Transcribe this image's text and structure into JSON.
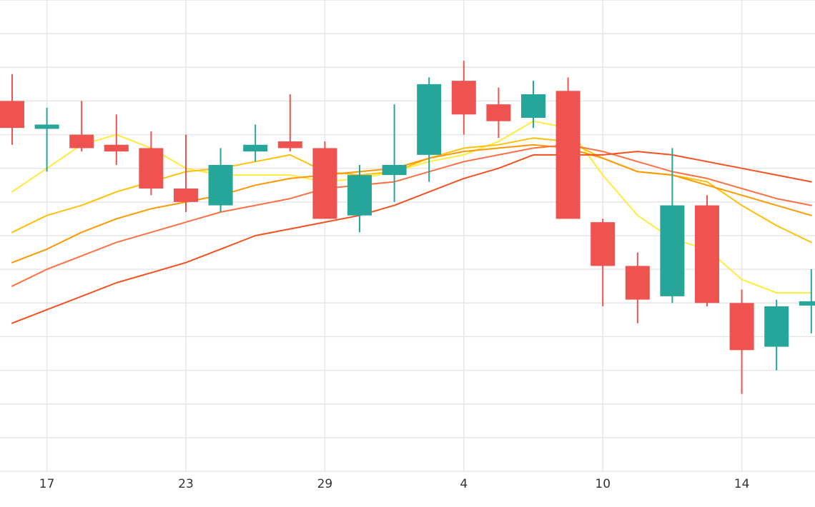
{
  "chart_data": {
    "type": "candlestick",
    "x_ticks": [
      {
        "label": "17",
        "index": 1
      },
      {
        "label": "23",
        "index": 5
      },
      {
        "label": "29",
        "index": 9
      },
      {
        "label": "4",
        "index": 13
      },
      {
        "label": "10",
        "index": 17
      },
      {
        "label": "14",
        "index": 21
      }
    ],
    "ylim": [
      0,
      14
    ],
    "grid": true,
    "colors": {
      "up": "#26a69a",
      "down": "#ef5350",
      "grid": "#e6e6e6"
    },
    "candles": [
      {
        "open": 11.0,
        "close": 10.2,
        "high": 11.8,
        "low": 9.7
      },
      {
        "open": 10.2,
        "close": 10.3,
        "high": 10.8,
        "low": 8.9
      },
      {
        "open": 10.0,
        "close": 9.6,
        "high": 11.0,
        "low": 9.5
      },
      {
        "open": 9.7,
        "close": 9.5,
        "high": 10.6,
        "low": 9.1
      },
      {
        "open": 9.6,
        "close": 8.4,
        "high": 10.1,
        "low": 8.2
      },
      {
        "open": 8.4,
        "close": 8.0,
        "high": 10.0,
        "low": 7.7
      },
      {
        "open": 7.9,
        "close": 9.1,
        "high": 9.6,
        "low": 7.7
      },
      {
        "open": 9.5,
        "close": 9.7,
        "high": 10.3,
        "low": 9.2
      },
      {
        "open": 9.8,
        "close": 9.6,
        "high": 11.2,
        "low": 9.5
      },
      {
        "open": 9.6,
        "close": 7.5,
        "high": 9.8,
        "low": 7.5
      },
      {
        "open": 7.6,
        "close": 8.8,
        "high": 9.1,
        "low": 7.1
      },
      {
        "open": 8.8,
        "close": 9.1,
        "high": 10.9,
        "low": 8.0
      },
      {
        "open": 9.4,
        "close": 11.5,
        "high": 11.7,
        "low": 8.6
      },
      {
        "open": 11.6,
        "close": 10.6,
        "high": 12.2,
        "low": 10.0
      },
      {
        "open": 10.9,
        "close": 10.4,
        "high": 11.4,
        "low": 9.9
      },
      {
        "open": 10.5,
        "close": 11.2,
        "high": 11.6,
        "low": 10.2
      },
      {
        "open": 11.3,
        "close": 7.5,
        "high": 11.7,
        "low": 7.5
      },
      {
        "open": 7.4,
        "close": 6.1,
        "high": 7.5,
        "low": 4.9
      },
      {
        "open": 6.1,
        "close": 5.1,
        "high": 6.5,
        "low": 4.4
      },
      {
        "open": 5.2,
        "close": 7.9,
        "high": 9.6,
        "low": 5.0
      },
      {
        "open": 7.9,
        "close": 5.0,
        "high": 8.2,
        "low": 4.9
      },
      {
        "open": 5.0,
        "close": 3.6,
        "high": 5.4,
        "low": 2.3
      },
      {
        "open": 3.7,
        "close": 4.9,
        "high": 5.1,
        "low": 3.0
      },
      {
        "open": 4.95,
        "close": 5.05,
        "high": 6.0,
        "low": 4.1
      }
    ],
    "series": [
      {
        "color": "#ffeb3b",
        "values": [
          8.3,
          9.0,
          9.7,
          10.0,
          9.6,
          9.0,
          8.8,
          8.8,
          8.8,
          8.6,
          8.7,
          8.9,
          9.2,
          9.4,
          9.8,
          10.4,
          10.2,
          8.8,
          7.6,
          6.9,
          6.6,
          5.7,
          5.3,
          5.3
        ]
      },
      {
        "color": "#ffc107",
        "values": [
          7.1,
          7.6,
          7.9,
          8.3,
          8.6,
          8.9,
          9.0,
          9.2,
          9.4,
          8.9,
          8.8,
          8.9,
          9.3,
          9.6,
          9.7,
          9.9,
          9.8,
          9.3,
          8.9,
          8.8,
          8.6,
          7.9,
          7.3,
          6.8
        ]
      },
      {
        "color": "#ff9800",
        "values": [
          6.2,
          6.6,
          7.1,
          7.5,
          7.8,
          8.0,
          8.2,
          8.5,
          8.7,
          8.8,
          8.9,
          9.0,
          9.3,
          9.5,
          9.6,
          9.7,
          9.6,
          9.3,
          8.9,
          8.8,
          8.5,
          8.2,
          7.9,
          7.6
        ]
      },
      {
        "color": "#ff7043",
        "values": [
          5.5,
          6.0,
          6.4,
          6.8,
          7.1,
          7.4,
          7.7,
          7.9,
          8.1,
          8.4,
          8.5,
          8.6,
          8.9,
          9.2,
          9.4,
          9.6,
          9.7,
          9.5,
          9.2,
          8.9,
          8.7,
          8.4,
          8.1,
          7.9
        ]
      },
      {
        "color": "#f4511e",
        "values": [
          4.4,
          4.8,
          5.2,
          5.6,
          5.9,
          6.2,
          6.6,
          7.0,
          7.2,
          7.4,
          7.6,
          7.9,
          8.3,
          8.7,
          9.0,
          9.4,
          9.4,
          9.4,
          9.5,
          9.4,
          9.2,
          9.0,
          8.8,
          8.6
        ]
      }
    ]
  }
}
